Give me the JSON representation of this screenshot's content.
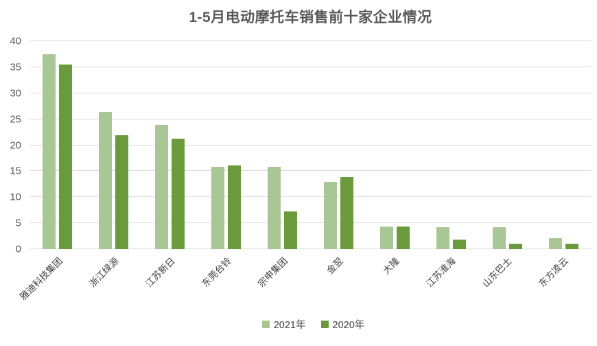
{
  "chart_data": {
    "type": "bar",
    "title": "1-5月电动摩托车销售前十家企业情况",
    "xlabel": "",
    "ylabel": "",
    "ylim": [
      0,
      40
    ],
    "y_ticks": [
      0,
      5,
      10,
      15,
      20,
      25,
      30,
      35,
      40
    ],
    "grid": true,
    "legend_position": "bottom",
    "categories": [
      "雅迪科技集团",
      "浙江绿源",
      "江苏新日",
      "东莞台铃",
      "宗申集团",
      "金翌",
      "大隆",
      "江苏淮海",
      "山东巴士",
      "东方凌云"
    ],
    "series": [
      {
        "name": "2021年",
        "color": "#a8c794",
        "values": [
          37.5,
          26.4,
          23.9,
          15.9,
          15.9,
          13.0,
          4.4,
          4.2,
          4.2,
          2.1
        ]
      },
      {
        "name": "2020年",
        "color": "#699b3d",
        "values": [
          35.5,
          21.9,
          21.2,
          16.1,
          7.3,
          13.8,
          4.3,
          1.8,
          1.1,
          1.1
        ]
      }
    ]
  },
  "colors": {
    "background": "#ffffff",
    "title_text": "#595959",
    "axis_text": "#595959",
    "xlabel_text": "#3f3f3f",
    "legend_text": "#404040",
    "gridline": "#d9d9d9"
  }
}
